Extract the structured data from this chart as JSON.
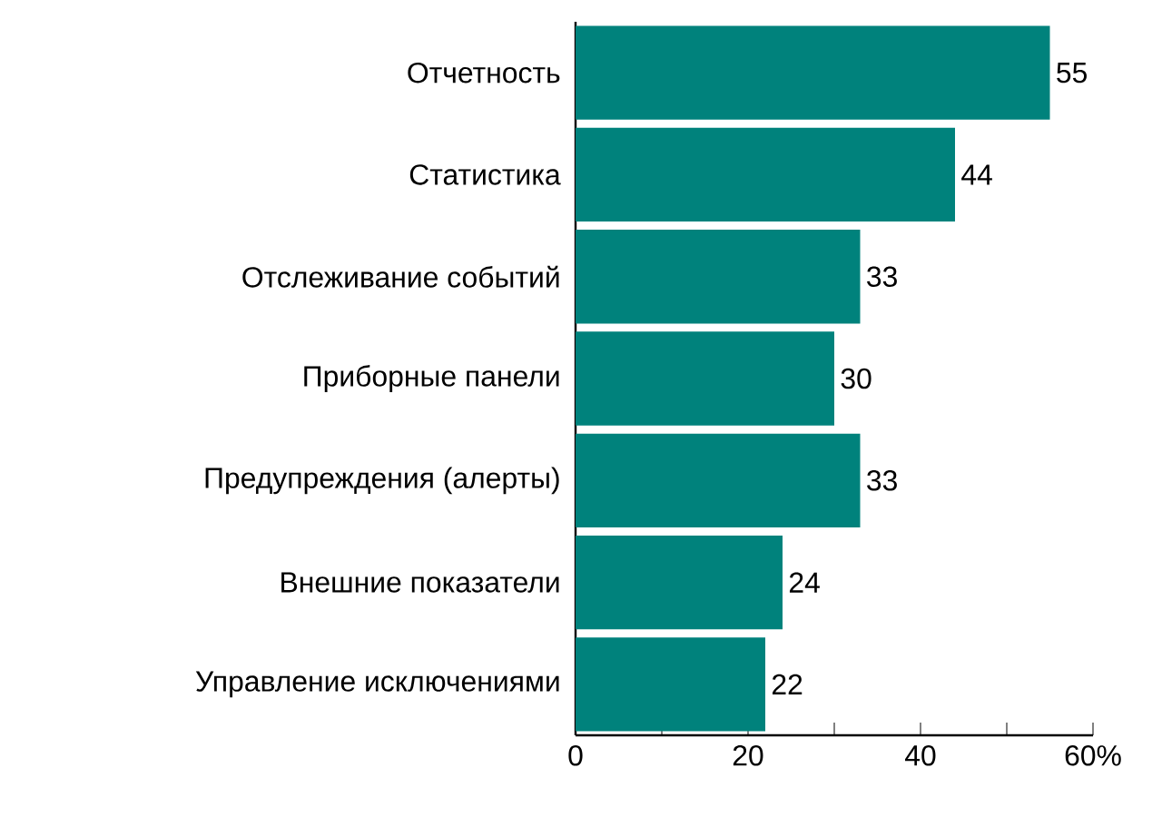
{
  "chart_data": {
    "type": "bar",
    "orientation": "horizontal",
    "categories": [
      "Отчетность",
      "Статистика",
      "Отслеживание событий",
      "Приборные панели",
      "Предупреждения (алерты)",
      "Внешние показатели",
      "Управление исключениями"
    ],
    "values": [
      55,
      44,
      33,
      30,
      33,
      24,
      22
    ],
    "color": "#00827c",
    "xlim": [
      0,
      60
    ],
    "xticks": [
      0,
      {
        "value": 10,
        "label": null
      },
      20,
      {
        "value": 30,
        "label": null
      },
      40,
      {
        "value": 50,
        "label": null
      },
      {
        "value": 60,
        "label": "60%"
      }
    ],
    "data_labels": true,
    "grid": false
  }
}
